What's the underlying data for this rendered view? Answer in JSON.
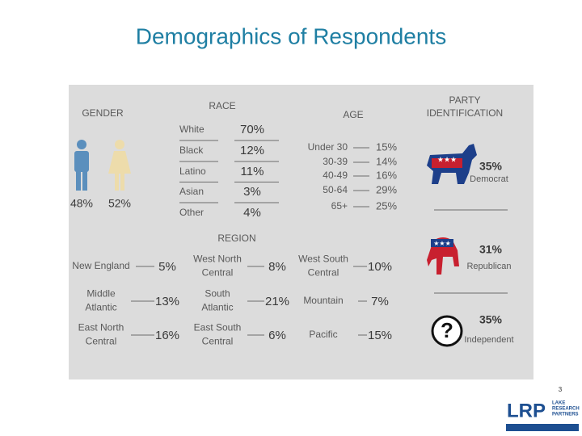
{
  "title": "Demographics of Respondents",
  "gender": {
    "header": "GENDER",
    "male": "48%",
    "female": "52%"
  },
  "race": {
    "header": "RACE",
    "rows": [
      {
        "label": "White",
        "value": "70%"
      },
      {
        "label": "Black",
        "value": "12%"
      },
      {
        "label": "Latino",
        "value": "11%"
      },
      {
        "label": "Asian",
        "value": "3%"
      },
      {
        "label": "Other",
        "value": "4%"
      }
    ]
  },
  "age": {
    "header": "AGE",
    "rows": [
      {
        "label": "Under 30",
        "value": "15%"
      },
      {
        "label": "30-39",
        "value": "14%"
      },
      {
        "label": "40-49",
        "value": "16%"
      },
      {
        "label": "50-64",
        "value": "29%"
      },
      {
        "label": "65+",
        "value": "25%"
      }
    ]
  },
  "party": {
    "header": [
      "PARTY",
      "IDENTIFICATION"
    ],
    "rows": [
      {
        "label": "Democrat",
        "value": "35%"
      },
      {
        "label": "Republican",
        "value": "31%"
      },
      {
        "label": "Independent",
        "value": "35%"
      }
    ]
  },
  "region": {
    "header": "REGION",
    "columns": [
      [
        {
          "label": [
            "New England"
          ],
          "value": "5%"
        },
        {
          "label": [
            "Middle",
            "Atlantic"
          ],
          "value": "13%"
        },
        {
          "label": [
            "East North",
            "Central"
          ],
          "value": "16%"
        }
      ],
      [
        {
          "label": [
            "West North",
            "Central"
          ],
          "value": "8%"
        },
        {
          "label": [
            "South",
            "Atlantic"
          ],
          "value": "21%"
        },
        {
          "label": [
            "East South",
            "Central"
          ],
          "value": "6%"
        }
      ],
      [
        {
          "label": [
            "West South",
            "Central"
          ],
          "value": "10%"
        },
        {
          "label": [
            "Mountain"
          ],
          "value": "7%"
        },
        {
          "label": [
            "Pacific"
          ],
          "value": "15%"
        }
      ]
    ]
  },
  "slide_number": "3",
  "logo": {
    "mark": "LRP",
    "name": [
      "LAKE",
      "RESEARCH",
      "PARTNERS"
    ]
  }
}
